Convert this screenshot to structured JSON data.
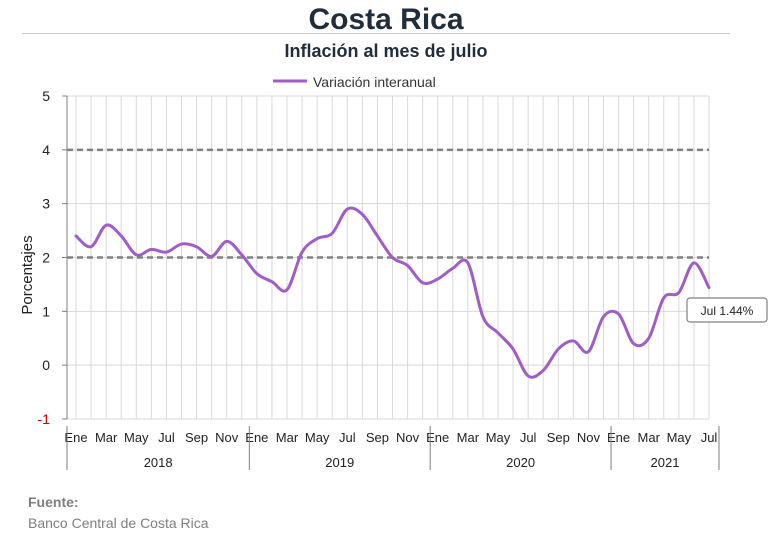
{
  "header": {
    "title": "Costa Rica",
    "subtitle": "Inflación al mes de julio"
  },
  "footer": {
    "source_label": "Fuente:",
    "source_text": "Banco Central de Costa Rica"
  },
  "chart_data": {
    "type": "line",
    "ylabel": "Porcentajes",
    "ylim": [
      -1,
      5
    ],
    "yticks": [
      "5",
      "4",
      "3",
      "2",
      "1",
      "0",
      "-1"
    ],
    "grid": true,
    "legend": "top-center",
    "reference_lines": [
      4,
      2
    ],
    "month_labels": [
      "Ene",
      "Mar",
      "May",
      "Jul",
      "Sep",
      "Nov",
      "Ene",
      "Mar",
      "May",
      "Jul",
      "Sep",
      "Nov",
      "Ene",
      "Mar",
      "May",
      "Jul",
      "Sep",
      "Nov",
      "Ene",
      "Mar",
      "May",
      "Jul"
    ],
    "years": [
      "2018",
      "2019",
      "2020",
      "2021"
    ],
    "series": [
      {
        "name": "Variación interanual",
        "color": "#a05dc9",
        "values": [
          2.4,
          2.2,
          2.6,
          2.4,
          2.05,
          2.15,
          2.1,
          2.25,
          2.2,
          2.02,
          2.3,
          2.05,
          1.7,
          1.55,
          1.4,
          2.1,
          2.35,
          2.45,
          2.9,
          2.8,
          2.4,
          2.0,
          1.85,
          1.53,
          1.6,
          1.8,
          1.9,
          0.9,
          0.6,
          0.3,
          -0.2,
          -0.1,
          0.3,
          0.45,
          0.25,
          0.9,
          0.95,
          0.4,
          0.5,
          1.25,
          1.35,
          1.9,
          1.44
        ]
      }
    ],
    "annotation": "Jul 1.44%"
  }
}
